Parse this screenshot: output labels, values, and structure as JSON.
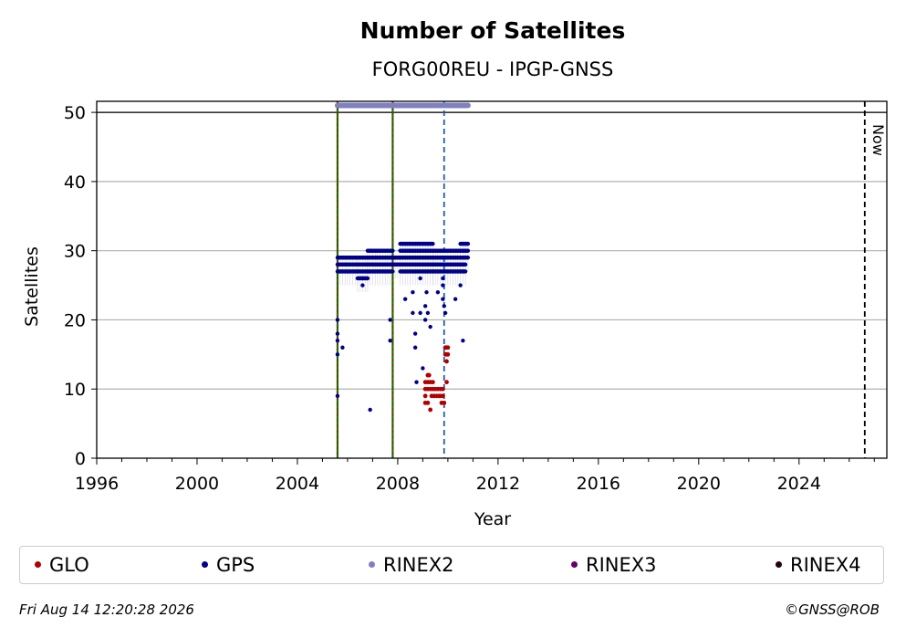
{
  "chart_data": {
    "type": "scatter",
    "title": "Number of Satellites",
    "subtitle": "FORG00REU - IPGP-GNSS",
    "xlabel": "Year",
    "ylabel": "Satellites",
    "xlim": [
      1996,
      2027.5
    ],
    "ylim": [
      0,
      51.6
    ],
    "xticks": [
      1996,
      2000,
      2004,
      2008,
      2012,
      2016,
      2020,
      2024
    ],
    "yticks": [
      0,
      10,
      20,
      30,
      40,
      50
    ],
    "grid": "y",
    "legend_position": "bottom",
    "vlines": [
      {
        "x": 2005.6,
        "style": "solid",
        "colors": [
          "#008000",
          "#cc0000"
        ]
      },
      {
        "x": 2007.8,
        "style": "solid",
        "colors": [
          "#008000",
          "#cc0000"
        ]
      },
      {
        "x": 2009.85,
        "style": "dashed",
        "colors": [
          "#1f5fa8"
        ]
      },
      {
        "x": 2026.62,
        "style": "dashed",
        "colors": [
          "#000000"
        ],
        "label": "Now"
      }
    ],
    "hline": 50,
    "rinex2_range": [
      2005.6,
      2010.8
    ],
    "rinex2_y": 51,
    "series": [
      {
        "name": "GPS",
        "color": "#00008b",
        "points": [
          [
            2005.6,
            20
          ],
          [
            2005.6,
            18
          ],
          [
            2005.6,
            17
          ],
          [
            2005.6,
            15
          ],
          [
            2005.6,
            9
          ],
          [
            2005.8,
            16
          ],
          [
            2006.9,
            7
          ],
          [
            2007.7,
            20
          ],
          [
            2007.7,
            17
          ],
          [
            2008.3,
            23
          ],
          [
            2008.6,
            24
          ],
          [
            2008.6,
            21
          ],
          [
            2008.7,
            18
          ],
          [
            2008.7,
            16
          ],
          [
            2008.75,
            11
          ],
          [
            2008.9,
            21
          ],
          [
            2009.0,
            13
          ],
          [
            2009.1,
            22
          ],
          [
            2009.1,
            20
          ],
          [
            2009.15,
            24
          ],
          [
            2009.2,
            21
          ],
          [
            2009.3,
            19
          ],
          [
            2009.6,
            24
          ],
          [
            2009.8,
            25
          ],
          [
            2009.8,
            23
          ],
          [
            2009.85,
            22
          ],
          [
            2009.9,
            21
          ],
          [
            2010.3,
            23
          ],
          [
            2010.5,
            25
          ],
          [
            2010.6,
            17
          ],
          [
            2006.6,
            26
          ],
          [
            2006.6,
            25
          ],
          [
            2008.9,
            26
          ],
          [
            2009.8,
            26
          ]
        ],
        "bands": [
          {
            "x0": 2005.6,
            "x1": 2006.4,
            "ys": [
              29,
              28,
              27
            ]
          },
          {
            "x0": 2006.4,
            "x1": 2006.8,
            "ys": [
              29,
              28,
              27,
              26
            ]
          },
          {
            "x0": 2006.8,
            "x1": 2007.8,
            "ys": [
              30,
              29,
              28,
              27
            ]
          },
          {
            "x0": 2007.8,
            "x1": 2008.1,
            "ys": [
              29,
              28
            ]
          },
          {
            "x0": 2008.1,
            "x1": 2009.4,
            "ys": [
              31,
              30,
              29,
              28,
              27
            ]
          },
          {
            "x0": 2009.4,
            "x1": 2010.7,
            "ys": [
              30,
              29,
              28,
              27
            ]
          },
          {
            "x0": 2010.5,
            "x1": 2010.8,
            "ys": [
              31,
              30,
              29
            ]
          }
        ]
      },
      {
        "name": "GLO",
        "color": "#b00000",
        "points": [
          [
            2009.1,
            11
          ],
          [
            2009.1,
            10
          ],
          [
            2009.1,
            9
          ],
          [
            2009.1,
            8
          ],
          [
            2009.2,
            12
          ],
          [
            2009.2,
            11
          ],
          [
            2009.2,
            10
          ],
          [
            2009.2,
            8
          ],
          [
            2009.25,
            12
          ],
          [
            2009.3,
            7
          ],
          [
            2009.3,
            11
          ],
          [
            2009.3,
            10
          ],
          [
            2009.35,
            9
          ],
          [
            2009.4,
            11
          ],
          [
            2009.4,
            10
          ],
          [
            2009.45,
            9
          ],
          [
            2009.5,
            10
          ],
          [
            2009.55,
            9
          ],
          [
            2009.6,
            10
          ],
          [
            2009.65,
            9
          ],
          [
            2009.7,
            10
          ],
          [
            2009.7,
            9
          ],
          [
            2009.75,
            8
          ],
          [
            2009.8,
            9
          ],
          [
            2009.8,
            10
          ],
          [
            2009.85,
            8
          ],
          [
            2009.9,
            16
          ],
          [
            2009.9,
            15
          ],
          [
            2009.95,
            16
          ],
          [
            2009.95,
            15
          ],
          [
            2009.95,
            14
          ],
          [
            2010.0,
            16
          ],
          [
            2010.0,
            15
          ],
          [
            2009.95,
            11
          ]
        ]
      },
      {
        "name": "RINEX2",
        "color": "#8080c0"
      },
      {
        "name": "RINEX3",
        "color": "#660066"
      },
      {
        "name": "RINEX4",
        "color": "#220011"
      }
    ]
  },
  "legend": [
    {
      "label": "GLO",
      "color": "#b00000"
    },
    {
      "label": "GPS",
      "color": "#00008b"
    },
    {
      "label": "RINEX2",
      "color": "#8080c0"
    },
    {
      "label": "RINEX3",
      "color": "#660066"
    },
    {
      "label": "RINEX4",
      "color": "#220011"
    }
  ],
  "footer": {
    "timestamp": "Fri Aug 14 12:20:28 2026",
    "copyright": "©GNSS@ROB"
  }
}
